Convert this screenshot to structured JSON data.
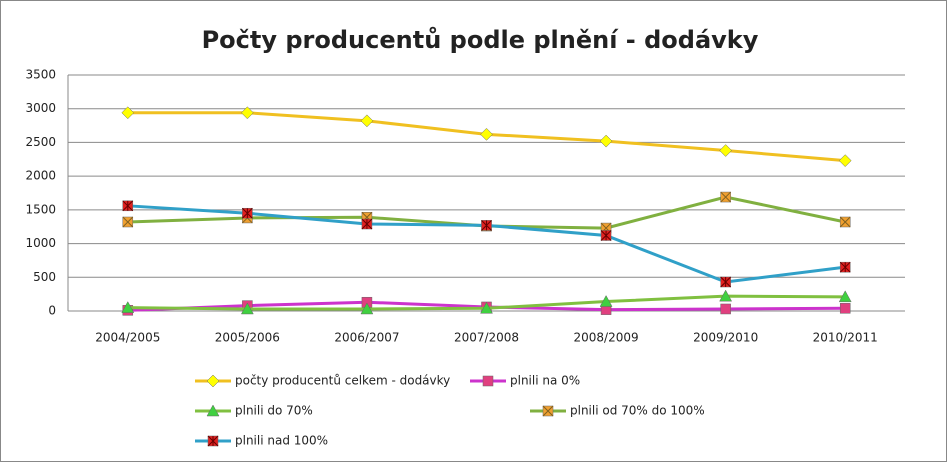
{
  "chart_data": {
    "type": "line",
    "title": "Počty producentů podle plnění - dodávky",
    "categories": [
      "2004/2005",
      "2005/2006",
      "2006/2007",
      "2007/2008",
      "2008/2009",
      "2009/2010",
      "2010/2011"
    ],
    "series": [
      {
        "name": "počty producentů celkem - dodávky",
        "color": "#f0c020",
        "marker_color": "#ffff00",
        "marker": "diamond",
        "values": [
          2940,
          2940,
          2820,
          2620,
          2520,
          2380,
          2230
        ]
      },
      {
        "name": "plnili na 0%",
        "color": "#cc33cc",
        "marker_color": "#e0407f",
        "marker": "square",
        "values": [
          10,
          80,
          130,
          60,
          20,
          30,
          40
        ]
      },
      {
        "name": "plnili do 70%",
        "color": "#80c040",
        "marker_color": "#40d040",
        "marker": "triangle",
        "values": [
          50,
          30,
          30,
          40,
          140,
          220,
          210
        ]
      },
      {
        "name": "plnili od 70% do 100%",
        "color": "#80b040",
        "marker_color": "#f0a030",
        "marker": "xsquare",
        "values": [
          1320,
          1380,
          1390,
          1260,
          1230,
          1690,
          1320
        ]
      },
      {
        "name": "plnili nad 100%",
        "color": "#30a0c8",
        "marker_color": "#e02020",
        "marker": "starsquare",
        "values": [
          1560,
          1450,
          1290,
          1270,
          1120,
          430,
          650
        ]
      }
    ],
    "ylim": [
      0,
      3500
    ],
    "yticks": [
      0,
      500,
      1000,
      1500,
      2000,
      2500,
      3000,
      3500
    ],
    "grid": true
  }
}
